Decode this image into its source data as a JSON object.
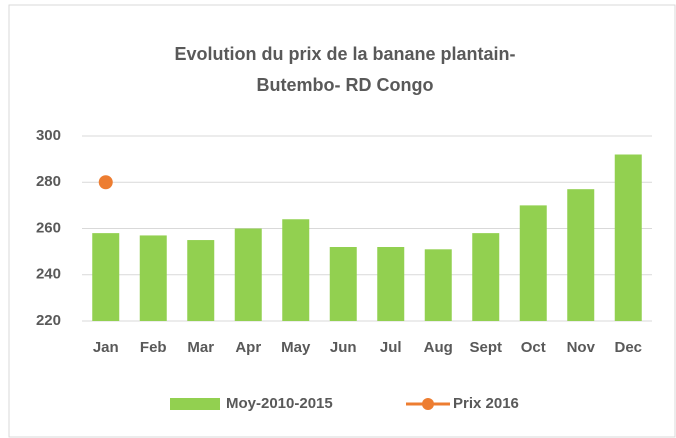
{
  "chart_data": {
    "type": "bar",
    "title": [
      "Evolution du prix de la banane plantain-",
      "Butembo- RD Congo"
    ],
    "categories": [
      "Jan",
      "Feb",
      "Mar",
      "Apr",
      "May",
      "Jun",
      "Jul",
      "Aug",
      "Sept",
      "Oct",
      "Nov",
      "Dec"
    ],
    "series": [
      {
        "name": "Moy-2010-2015",
        "type": "bar",
        "color": "#92d050",
        "values": [
          258,
          257,
          255,
          260,
          264,
          252,
          252,
          251,
          258,
          270,
          277,
          292
        ]
      },
      {
        "name": "Prix 2016",
        "type": "line",
        "color": "#ed7d31",
        "values": [
          280,
          null,
          null,
          null,
          null,
          null,
          null,
          null,
          null,
          null,
          null,
          null
        ]
      }
    ],
    "ylim": [
      220,
      300
    ],
    "yticks": [
      220,
      240,
      260,
      280,
      300
    ],
    "grid": true,
    "legend": "bottom"
  }
}
